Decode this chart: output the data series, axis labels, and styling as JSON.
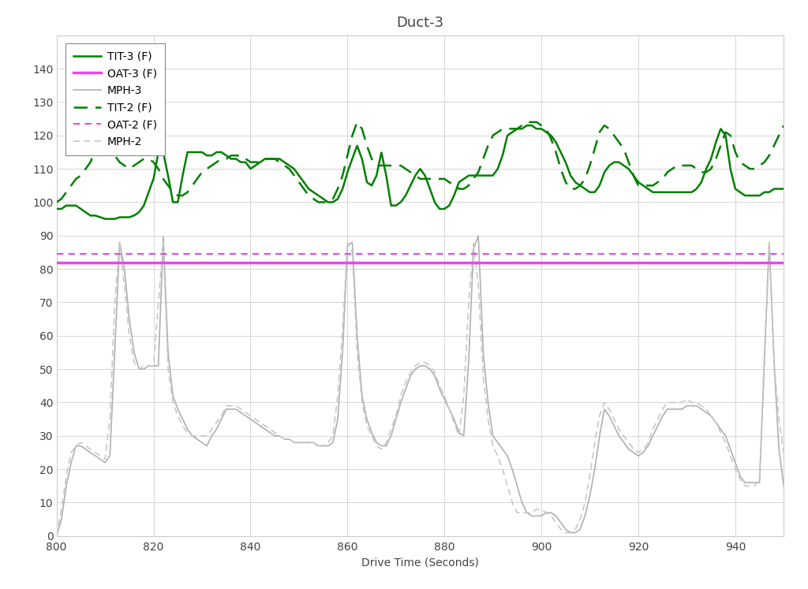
{
  "title": "Duct-3",
  "xlabel": "Drive Time (Seconds)",
  "xlim": [
    800,
    950
  ],
  "ylim": [
    0,
    150
  ],
  "yticks": [
    0,
    10,
    20,
    30,
    40,
    50,
    60,
    70,
    80,
    90,
    100,
    110,
    120,
    130,
    140
  ],
  "xticks": [
    800,
    820,
    840,
    860,
    880,
    900,
    920,
    940
  ],
  "oat3_value": 82.0,
  "oat2_value": 84.5,
  "background_color": "#ffffff",
  "grid_color": "#d0d0d0",
  "tit3_color": "#008000",
  "tit2_color": "#008000",
  "oat3_color": "#ee44ee",
  "oat2_color": "#ee44ee",
  "mph3_color": "#b0b0b0",
  "mph2_color": "#c8c8c8",
  "legend_fontsize": 10,
  "title_fontsize": 13,
  "axis_fontsize": 10,
  "linewidth_tit": 1.8,
  "linewidth_mph": 1.2,
  "linewidth_oat3": 2.5,
  "linewidth_oat2": 1.5
}
